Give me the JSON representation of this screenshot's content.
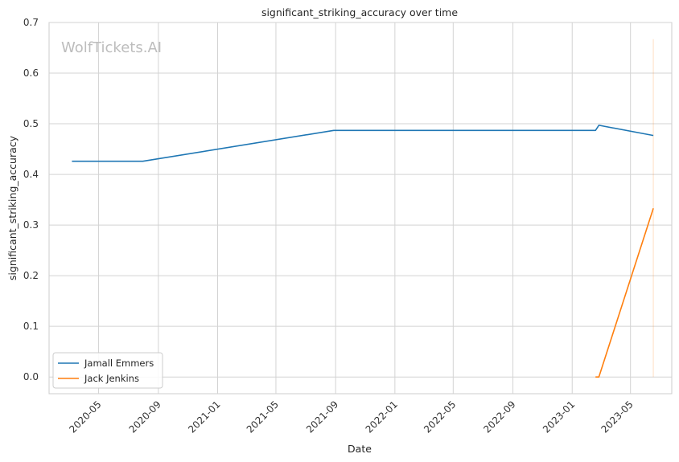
{
  "chart_data": {
    "type": "line",
    "title": "significant_striking_accuracy over time",
    "xlabel": "Date",
    "ylabel": "significant_striking_accuracy",
    "watermark": "WolfTickets.AI",
    "xlim": [
      "2020-01-20",
      "2023-07-25"
    ],
    "ylim": [
      -0.033,
      0.7
    ],
    "x_ticks": [
      "2020-05-01",
      "2020-09-01",
      "2021-01-01",
      "2021-05-01",
      "2021-09-01",
      "2022-01-01",
      "2022-05-01",
      "2022-09-01",
      "2023-01-01",
      "2023-05-01"
    ],
    "x_tick_labels": [
      "2020-05",
      "2020-09",
      "2021-01",
      "2021-05",
      "2021-09",
      "2022-01",
      "2022-05",
      "2022-09",
      "2023-01",
      "2023-05"
    ],
    "y_ticks": [
      0.0,
      0.1,
      0.2,
      0.3,
      0.4,
      0.5,
      0.6,
      0.7
    ],
    "y_tick_labels": [
      "0.0",
      "0.1",
      "0.2",
      "0.3",
      "0.4",
      "0.5",
      "0.6",
      "0.7"
    ],
    "grid": true,
    "legend_position": "lower-left",
    "series": [
      {
        "name": "Jamall Emmers",
        "color": "#1f77b4",
        "points": [
          {
            "x": "2020-03-07",
            "y": 0.426
          },
          {
            "x": "2020-07-31",
            "y": 0.426
          },
          {
            "x": "2021-08-28",
            "y": 0.487
          },
          {
            "x": "2023-02-18",
            "y": 0.487
          },
          {
            "x": "2023-02-25",
            "y": 0.497
          },
          {
            "x": "2023-06-17",
            "y": 0.477
          }
        ]
      },
      {
        "name": "Jack Jenkins",
        "color": "#ff7f0e",
        "points": [
          {
            "x": "2023-02-18",
            "y": 0.0
          },
          {
            "x": "2023-02-25",
            "y": 0.0
          },
          {
            "x": "2023-06-17",
            "y": 0.333
          }
        ]
      }
    ],
    "annotations": [
      {
        "type": "vertical-line",
        "x": "2023-06-17",
        "y_from": 0.0,
        "y_to": 0.667,
        "color": "#ff7f0e"
      }
    ]
  }
}
